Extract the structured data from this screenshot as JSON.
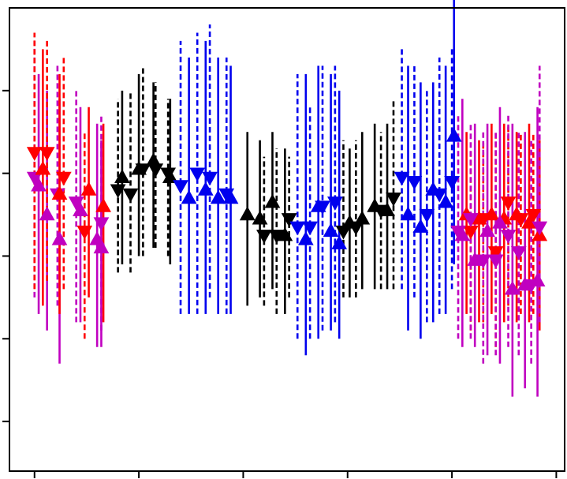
{
  "chart_data": {
    "type": "scatter",
    "title": "",
    "xlabel": "",
    "ylabel": "",
    "grid": false,
    "legend": "none",
    "xlim": [
      -0.6,
      12.7
    ],
    "ylim": [
      -0.6,
      5.0
    ],
    "x_ticks": [
      0,
      2.5,
      5,
      7.5,
      10,
      12.5
    ],
    "y_ticks": [
      0,
      1,
      2,
      3,
      4
    ],
    "colors": {
      "red": "#ff0000",
      "magenta": "#c000c0",
      "black": "#000000",
      "blue": "#0000ee"
    },
    "series": [
      {
        "color": "magenta",
        "marker": "triangle-down",
        "line": "dashed",
        "points": [
          {
            "x": 0.0,
            "y": 2.95,
            "lo": 1.5,
            "hi": 4.6
          },
          {
            "x": 0.55,
            "y": 2.75,
            "lo": 1.4,
            "hi": 4.3
          },
          {
            "x": 1.0,
            "y": 2.65,
            "lo": 1.2,
            "hi": 4.0
          },
          {
            "x": 1.6,
            "y": 2.4,
            "lo": 1.1,
            "hi": 3.7
          }
        ]
      },
      {
        "color": "magenta",
        "marker": "triangle-up",
        "line": "solid",
        "points": [
          {
            "x": 0.1,
            "y": 2.85,
            "lo": 1.3,
            "hi": 4.2
          },
          {
            "x": 0.3,
            "y": 2.5,
            "lo": 1.1,
            "hi": 4.0
          },
          {
            "x": 0.6,
            "y": 2.2,
            "lo": 0.7,
            "hi": 3.9
          },
          {
            "x": 1.1,
            "y": 2.55,
            "lo": 1.2,
            "hi": 3.8
          },
          {
            "x": 1.5,
            "y": 2.2,
            "lo": 0.9,
            "hi": 3.6
          },
          {
            "x": 1.6,
            "y": 2.1,
            "lo": 0.9,
            "hi": 3.4
          }
        ]
      },
      {
        "color": "red",
        "marker": "triangle-down",
        "line": "dashed",
        "points": [
          {
            "x": 0.0,
            "y": 3.25,
            "lo": 1.6,
            "hi": 4.7
          },
          {
            "x": 0.3,
            "y": 3.25,
            "lo": 1.7,
            "hi": 4.6
          },
          {
            "x": 0.7,
            "y": 2.95,
            "lo": 1.6,
            "hi": 4.4
          },
          {
            "x": 1.2,
            "y": 2.3,
            "lo": 1.0,
            "hi": 3.5
          }
        ]
      },
      {
        "color": "red",
        "marker": "triangle-up",
        "line": "solid",
        "points": [
          {
            "x": 0.2,
            "y": 3.05,
            "lo": 1.4,
            "hi": 4.5
          },
          {
            "x": 0.6,
            "y": 2.75,
            "lo": 1.3,
            "hi": 4.2
          },
          {
            "x": 1.3,
            "y": 2.8,
            "lo": 1.5,
            "hi": 3.8
          },
          {
            "x": 1.65,
            "y": 2.6,
            "lo": 1.2,
            "hi": 3.6
          }
        ]
      },
      {
        "color": "black",
        "marker": "triangle-down",
        "line": "dashed",
        "points": [
          {
            "x": 2.0,
            "y": 2.8,
            "lo": 1.8,
            "hi": 3.9
          },
          {
            "x": 2.3,
            "y": 2.75,
            "lo": 1.8,
            "hi": 4.0
          },
          {
            "x": 2.6,
            "y": 3.05,
            "lo": 2.0,
            "hi": 4.3
          },
          {
            "x": 2.9,
            "y": 3.05,
            "lo": 2.1,
            "hi": 4.1
          },
          {
            "x": 3.2,
            "y": 3.0,
            "lo": 2.0,
            "hi": 3.9
          },
          {
            "x": 5.5,
            "y": 2.25,
            "lo": 1.4,
            "hi": 3.2
          },
          {
            "x": 5.8,
            "y": 2.25,
            "lo": 1.3,
            "hi": 3.3
          },
          {
            "x": 6.1,
            "y": 2.45,
            "lo": 1.5,
            "hi": 3.2
          }
        ]
      },
      {
        "color": "black",
        "marker": "triangle-up",
        "line": "solid",
        "points": [
          {
            "x": 2.1,
            "y": 2.95,
            "lo": 1.9,
            "hi": 4.0
          },
          {
            "x": 2.5,
            "y": 3.05,
            "lo": 2.0,
            "hi": 4.2
          },
          {
            "x": 2.85,
            "y": 3.15,
            "lo": 2.1,
            "hi": 4.1
          },
          {
            "x": 3.25,
            "y": 2.95,
            "lo": 1.9,
            "hi": 3.9
          },
          {
            "x": 5.1,
            "y": 2.5,
            "lo": 1.4,
            "hi": 3.5
          },
          {
            "x": 5.4,
            "y": 2.45,
            "lo": 1.5,
            "hi": 3.4
          },
          {
            "x": 5.7,
            "y": 2.65,
            "lo": 1.6,
            "hi": 3.5
          },
          {
            "x": 6.0,
            "y": 2.25,
            "lo": 1.3,
            "hi": 3.3
          }
        ]
      },
      {
        "color": "black",
        "marker": "triangle-down",
        "line": "dashed",
        "points": [
          {
            "x": 7.4,
            "y": 2.3,
            "lo": 1.5,
            "hi": 3.4
          },
          {
            "x": 7.7,
            "y": 2.35,
            "lo": 1.5,
            "hi": 3.4
          },
          {
            "x": 8.3,
            "y": 2.55,
            "lo": 1.6,
            "hi": 3.5
          },
          {
            "x": 8.6,
            "y": 2.7,
            "lo": 1.6,
            "hi": 3.9
          }
        ]
      },
      {
        "color": "black",
        "marker": "triangle-up",
        "line": "solid",
        "points": [
          {
            "x": 7.55,
            "y": 2.4,
            "lo": 1.5,
            "hi": 3.3
          },
          {
            "x": 7.85,
            "y": 2.45,
            "lo": 1.6,
            "hi": 3.5
          },
          {
            "x": 8.15,
            "y": 2.6,
            "lo": 1.6,
            "hi": 3.6
          },
          {
            "x": 8.45,
            "y": 2.55,
            "lo": 1.6,
            "hi": 3.6
          }
        ]
      },
      {
        "color": "blue",
        "marker": "triangle-down",
        "line": "dashed",
        "points": [
          {
            "x": 3.5,
            "y": 2.85,
            "lo": 1.3,
            "hi": 4.6
          },
          {
            "x": 3.9,
            "y": 3.0,
            "lo": 1.3,
            "hi": 4.7
          },
          {
            "x": 4.2,
            "y": 2.95,
            "lo": 1.5,
            "hi": 4.8
          },
          {
            "x": 4.6,
            "y": 2.75,
            "lo": 1.3,
            "hi": 4.4
          },
          {
            "x": 6.3,
            "y": 2.35,
            "lo": 1.0,
            "hi": 4.2
          },
          {
            "x": 6.6,
            "y": 2.35,
            "lo": 1.0,
            "hi": 3.8
          },
          {
            "x": 6.9,
            "y": 2.6,
            "lo": 1.1,
            "hi": 4.3
          },
          {
            "x": 7.2,
            "y": 2.65,
            "lo": 1.2,
            "hi": 4.3
          }
        ]
      },
      {
        "color": "blue",
        "marker": "triangle-up",
        "line": "solid",
        "points": [
          {
            "x": 3.7,
            "y": 2.7,
            "lo": 1.3,
            "hi": 4.4
          },
          {
            "x": 4.1,
            "y": 2.8,
            "lo": 1.3,
            "hi": 4.6
          },
          {
            "x": 4.4,
            "y": 2.7,
            "lo": 1.3,
            "hi": 4.4
          },
          {
            "x": 4.7,
            "y": 2.7,
            "lo": 1.3,
            "hi": 4.3
          },
          {
            "x": 6.5,
            "y": 2.2,
            "lo": 0.8,
            "hi": 4.2
          },
          {
            "x": 6.8,
            "y": 2.6,
            "lo": 1.0,
            "hi": 4.3
          },
          {
            "x": 7.1,
            "y": 2.3,
            "lo": 1.1,
            "hi": 4.2
          },
          {
            "x": 7.3,
            "y": 2.15,
            "lo": 1.0,
            "hi": 4.0
          }
        ]
      },
      {
        "color": "blue",
        "marker": "triangle-down",
        "line": "dashed",
        "points": [
          {
            "x": 8.8,
            "y": 2.95,
            "lo": 1.6,
            "hi": 4.5
          },
          {
            "x": 9.1,
            "y": 2.9,
            "lo": 1.5,
            "hi": 4.3
          },
          {
            "x": 9.4,
            "y": 2.5,
            "lo": 1.2,
            "hi": 4.0
          },
          {
            "x": 9.7,
            "y": 2.75,
            "lo": 1.3,
            "hi": 4.4
          },
          {
            "x": 10.0,
            "y": 2.9,
            "lo": 1.6,
            "hi": 4.5
          }
        ]
      },
      {
        "color": "blue",
        "marker": "triangle-up",
        "line": "solid",
        "points": [
          {
            "x": 8.95,
            "y": 2.5,
            "lo": 1.1,
            "hi": 4.3
          },
          {
            "x": 9.25,
            "y": 2.35,
            "lo": 1.0,
            "hi": 4.1
          },
          {
            "x": 9.55,
            "y": 2.8,
            "lo": 1.2,
            "hi": 4.1
          },
          {
            "x": 9.85,
            "y": 2.65,
            "lo": 1.3,
            "hi": 4.3
          },
          {
            "x": 10.05,
            "y": 3.45,
            "lo": 1.9,
            "hi": 5.1
          }
        ]
      },
      {
        "color": "red",
        "marker": "triangle-up",
        "line": "solid",
        "points": [
          {
            "x": 10.35,
            "y": 2.5,
            "lo": 1.3,
            "hi": 3.5
          },
          {
            "x": 10.65,
            "y": 2.45,
            "lo": 1.2,
            "hi": 3.4
          },
          {
            "x": 10.95,
            "y": 2.5,
            "lo": 1.3,
            "hi": 3.6
          },
          {
            "x": 11.25,
            "y": 2.45,
            "lo": 1.2,
            "hi": 3.6
          },
          {
            "x": 11.55,
            "y": 2.5,
            "lo": 1.2,
            "hi": 3.5
          },
          {
            "x": 11.85,
            "y": 2.4,
            "lo": 1.2,
            "hi": 3.6
          },
          {
            "x": 12.1,
            "y": 2.25,
            "lo": 1.1,
            "hi": 3.4
          }
        ]
      },
      {
        "color": "red",
        "marker": "triangle-down",
        "line": "dashed",
        "points": [
          {
            "x": 10.45,
            "y": 2.3,
            "lo": 1.1,
            "hi": 3.3
          },
          {
            "x": 10.75,
            "y": 2.45,
            "lo": 1.2,
            "hi": 3.4
          },
          {
            "x": 11.05,
            "y": 2.05,
            "lo": 0.9,
            "hi": 3.5
          },
          {
            "x": 11.35,
            "y": 2.65,
            "lo": 1.4,
            "hi": 3.6
          },
          {
            "x": 11.65,
            "y": 2.45,
            "lo": 1.3,
            "hi": 3.5
          },
          {
            "x": 11.95,
            "y": 2.5,
            "lo": 1.3,
            "hi": 3.5
          }
        ]
      },
      {
        "color": "magenta",
        "marker": "triangle-up",
        "line": "solid",
        "points": [
          {
            "x": 10.25,
            "y": 2.25,
            "lo": 0.9,
            "hi": 3.9
          },
          {
            "x": 10.55,
            "y": 1.95,
            "lo": 0.9,
            "hi": 3.6
          },
          {
            "x": 10.85,
            "y": 2.3,
            "lo": 0.8,
            "hi": 3.6
          },
          {
            "x": 11.15,
            "y": 2.4,
            "lo": 0.7,
            "hi": 3.8
          },
          {
            "x": 11.45,
            "y": 1.6,
            "lo": 0.3,
            "hi": 3.6
          },
          {
            "x": 11.75,
            "y": 1.65,
            "lo": 0.4,
            "hi": 3.5
          },
          {
            "x": 12.05,
            "y": 1.7,
            "lo": 0.3,
            "hi": 3.8
          }
        ]
      },
      {
        "color": "magenta",
        "marker": "triangle-down",
        "line": "dashed",
        "points": [
          {
            "x": 10.15,
            "y": 2.3,
            "lo": 1.0,
            "hi": 3.7
          },
          {
            "x": 10.45,
            "y": 2.45,
            "lo": 1.0,
            "hi": 3.6
          },
          {
            "x": 10.75,
            "y": 1.95,
            "lo": 0.7,
            "hi": 3.5
          },
          {
            "x": 11.05,
            "y": 1.95,
            "lo": 0.8,
            "hi": 3.5
          },
          {
            "x": 11.35,
            "y": 2.25,
            "lo": 0.9,
            "hi": 3.7
          },
          {
            "x": 11.6,
            "y": 2.05,
            "lo": 0.8,
            "hi": 3.5
          },
          {
            "x": 11.9,
            "y": 1.65,
            "lo": 0.7,
            "hi": 3.4
          },
          {
            "x": 12.1,
            "y": 2.35,
            "lo": 1.2,
            "hi": 4.3
          }
        ]
      }
    ]
  }
}
